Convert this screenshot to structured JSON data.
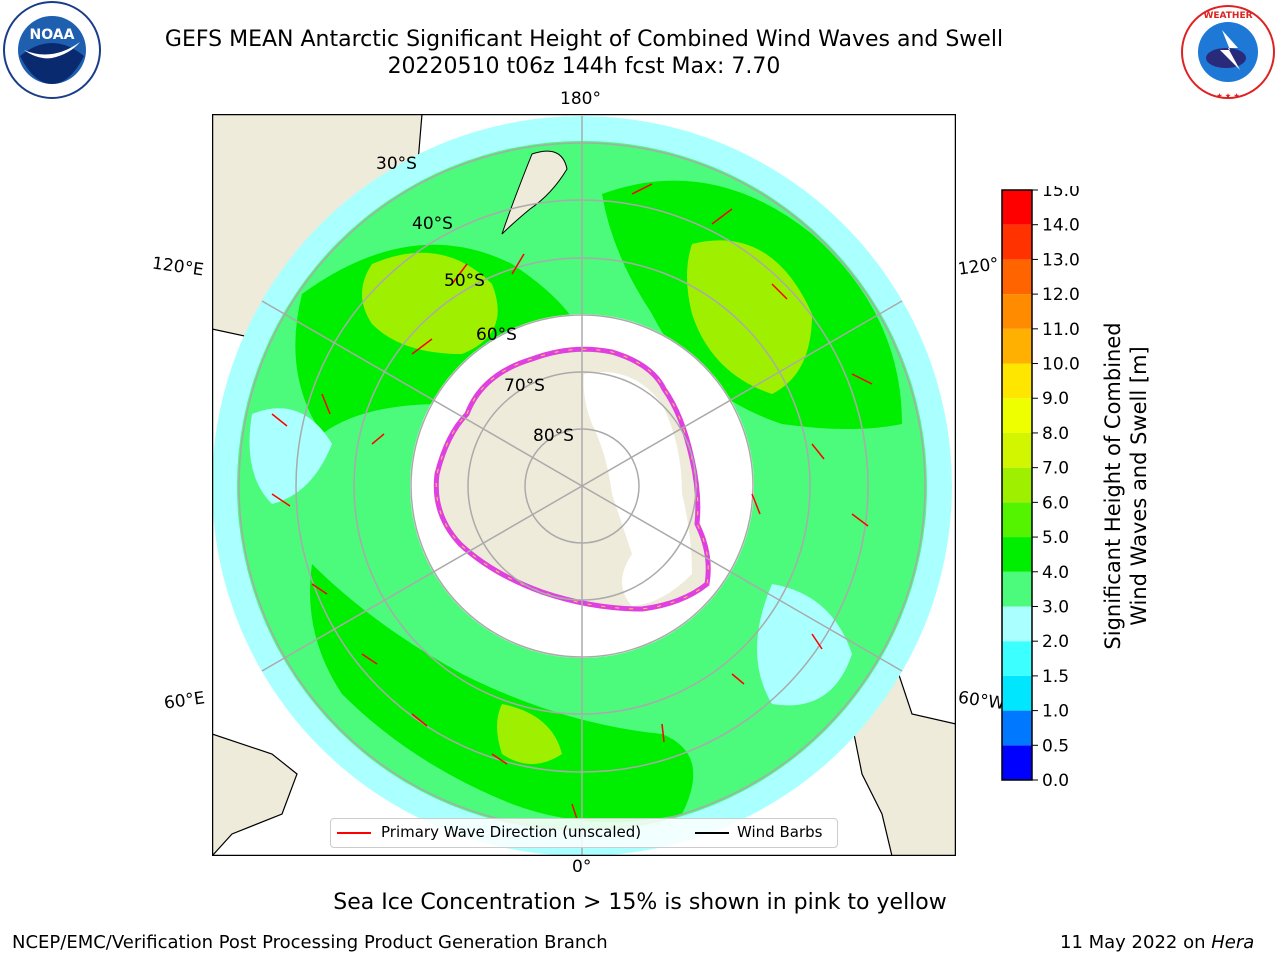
{
  "header": {
    "title_line1": "GEFS MEAN Antarctic Significant Height of Combined Wind Waves and Swell",
    "title_line2": "20220510 t06z 144h fcst   Max: 7.70"
  },
  "logos": {
    "left": "NOAA",
    "right": "NATIONAL WEATHER SERVICE"
  },
  "map": {
    "projection": "south-polar-stereographic",
    "longitude_labels": {
      "top": "180°",
      "bottom": "0°",
      "left_upper": "120°E",
      "left_lower": "60°E",
      "right_upper": "120°",
      "right_lower": "60°W"
    },
    "latitude_labels": [
      "30°S",
      "40°S",
      "50°S",
      "60°S",
      "70°S",
      "80°S"
    ]
  },
  "legend": {
    "wave_label": "Primary Wave Direction (unscaled)",
    "barb_label": "Wind Barbs",
    "wave_color": "#ff0000",
    "barb_color": "#000000"
  },
  "colorbar": {
    "label_line1": "Significant Height of Combined",
    "label_line2": "Wind Waves and Swell [m]",
    "ticks": [
      "0.0",
      "0.5",
      "1.0",
      "1.5",
      "2.0",
      "3.0",
      "4.0",
      "5.0",
      "6.0",
      "7.0",
      "8.0",
      "9.0",
      "10.0",
      "11.0",
      "12.0",
      "13.0",
      "14.0",
      "15.0"
    ],
    "colors": [
      "#0000ff",
      "#0078ff",
      "#00e6ff",
      "#3cffff",
      "#aaffff",
      "#4cfa7c",
      "#00ee00",
      "#54f400",
      "#9ef000",
      "#d2f500",
      "#eeff00",
      "#ffe600",
      "#ffb000",
      "#ff8c00",
      "#ff6400",
      "#ff3200",
      "#ff0000"
    ]
  },
  "footer": {
    "sea_ice_note": "Sea Ice Concentration > 15% is shown in pink to yellow",
    "credit": "NCEP/EMC/Verification Post Processing Product Generation Branch",
    "date_text": "11 May 2022 on ",
    "date_machine": "Hera"
  }
}
